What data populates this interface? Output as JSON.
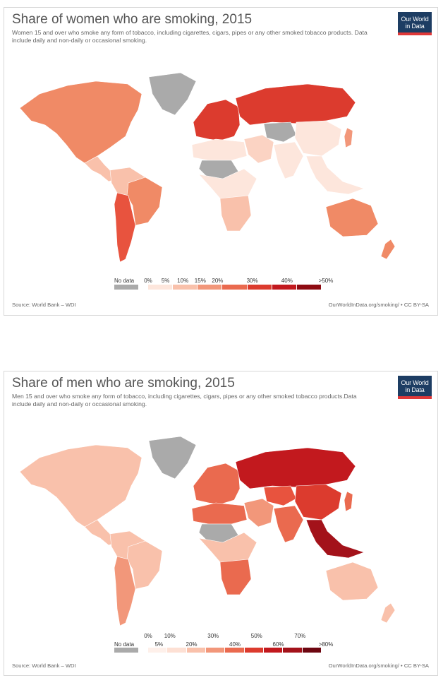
{
  "panels": [
    {
      "title": "Share of women who are smoking, 2015",
      "subtitle": "Women 15 and over who smoke any form of tobacco, including cigarettes, cigars, pipes or any other smoked tobacco products. Data include daily and non-daily or occasional smoking.",
      "logo": [
        "Our World",
        "in Data"
      ],
      "legend": {
        "no_data_label": "No data",
        "ticks": [
          "0%",
          "5%",
          "10%",
          "15%",
          "20%",
          "30%",
          "40%",
          ">50%"
        ],
        "colors": [
          "#fde6dc",
          "#f9c1ab",
          "#f2977a",
          "#ea6a4f",
          "#dc3b2e",
          "#c2191e",
          "#8e0b12"
        ]
      },
      "regions": {
        "north_america": "#f08a66",
        "greenland": "#aaaaaa",
        "central_america": "#f9c1ab",
        "south_america_north": "#f9c1ab",
        "brazil": "#f08a66",
        "southern_cone": "#e8533e",
        "europe": "#dc3b2e",
        "russia": "#dc3b2e",
        "north_africa": "#fde6dc",
        "sahara": "#aaaaaa",
        "central_africa": "#fde6dc",
        "southern_africa": "#f9c1ab",
        "middle_east": "#fbd3c3",
        "central_asia": "#aaaaaa",
        "south_asia": "#fde6dc",
        "china": "#fde6dc",
        "southeast_asia": "#fde6dc",
        "australia": "#f08a66",
        "new_zealand": "#f08a66",
        "japan": "#f2977a"
      },
      "source": "Source: World Bank – WDI",
      "url": "OurWorldInData.org/smoking/ • CC BY-SA"
    },
    {
      "title": "Share of men who are smoking, 2015",
      "subtitle": "Men 15 and over who smoke any form of tobacco, including cigarettes, cigars, pipes or any other smoked tobacco products.Data include daily and non-daily or occasional smoking.",
      "logo": [
        "Our World",
        "in Data"
      ],
      "legend": {
        "no_data_label": "No data",
        "ticks": [
          "0%",
          "5%",
          "10%",
          "20%",
          "30%",
          "40%",
          "50%",
          "60%",
          "70%",
          ">80%"
        ],
        "colors": [
          "#fef0ea",
          "#fde0d4",
          "#f9c1ab",
          "#f2977a",
          "#ea6a4f",
          "#dc3b2e",
          "#c2191e",
          "#a3121a",
          "#6d0610"
        ]
      },
      "regions": {
        "north_america": "#f9c1ab",
        "greenland": "#aaaaaa",
        "central_america": "#f9c1ab",
        "south_america_north": "#f9c1ab",
        "brazil": "#f9c1ab",
        "southern_cone": "#f2977a",
        "europe": "#ea6a4f",
        "russia": "#c2191e",
        "north_africa": "#ea6a4f",
        "sahara": "#aaaaaa",
        "central_africa": "#f9c1ab",
        "southern_africa": "#ea6a4f",
        "middle_east": "#f2977a",
        "central_asia": "#e8533e",
        "south_asia": "#ea6a4f",
        "china": "#dc3b2e",
        "southeast_asia": "#a3121a",
        "australia": "#f9c1ab",
        "new_zealand": "#f9c1ab",
        "japan": "#ea6a4f"
      },
      "source": "Source: World Bank – WDI",
      "url": "OurWorldInData.org/smoking/ • CC BY-SA"
    }
  ]
}
